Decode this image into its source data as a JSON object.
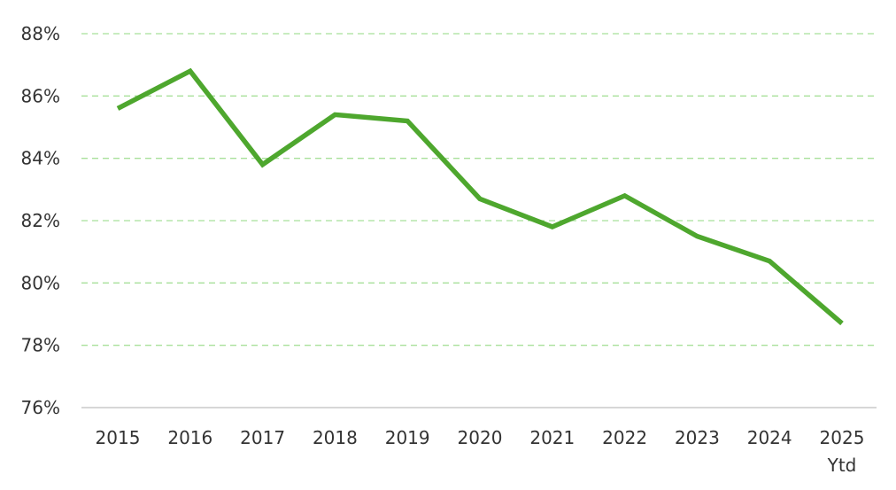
{
  "chart_data": {
    "type": "line",
    "categories": [
      "2015",
      "2016",
      "2017",
      "2018",
      "2019",
      "2020",
      "2021",
      "2022",
      "2023",
      "2024",
      "2025\nYtd"
    ],
    "category_lines": [
      [
        "2015"
      ],
      [
        "2016"
      ],
      [
        "2017"
      ],
      [
        "2018"
      ],
      [
        "2019"
      ],
      [
        "2020"
      ],
      [
        "2021"
      ],
      [
        "2022"
      ],
      [
        "2023"
      ],
      [
        "2024"
      ],
      [
        "2025",
        "Ytd"
      ]
    ],
    "values": [
      85.6,
      86.8,
      83.8,
      85.4,
      85.2,
      82.7,
      81.8,
      82.8,
      81.5,
      80.7,
      78.7
    ],
    "ylim": [
      76,
      88
    ],
    "yticks": [
      76,
      78,
      80,
      82,
      84,
      86,
      88
    ],
    "ytick_labels": [
      "76%",
      "78%",
      "80%",
      "82%",
      "84%",
      "86%",
      "88%"
    ],
    "title": "",
    "xlabel": "",
    "ylabel": "",
    "grid": true,
    "legend": "none",
    "colors": {
      "line": "#4ea72e",
      "grid": "#a8e09a",
      "axis": "#bfbfbf",
      "text": "#333333"
    }
  }
}
